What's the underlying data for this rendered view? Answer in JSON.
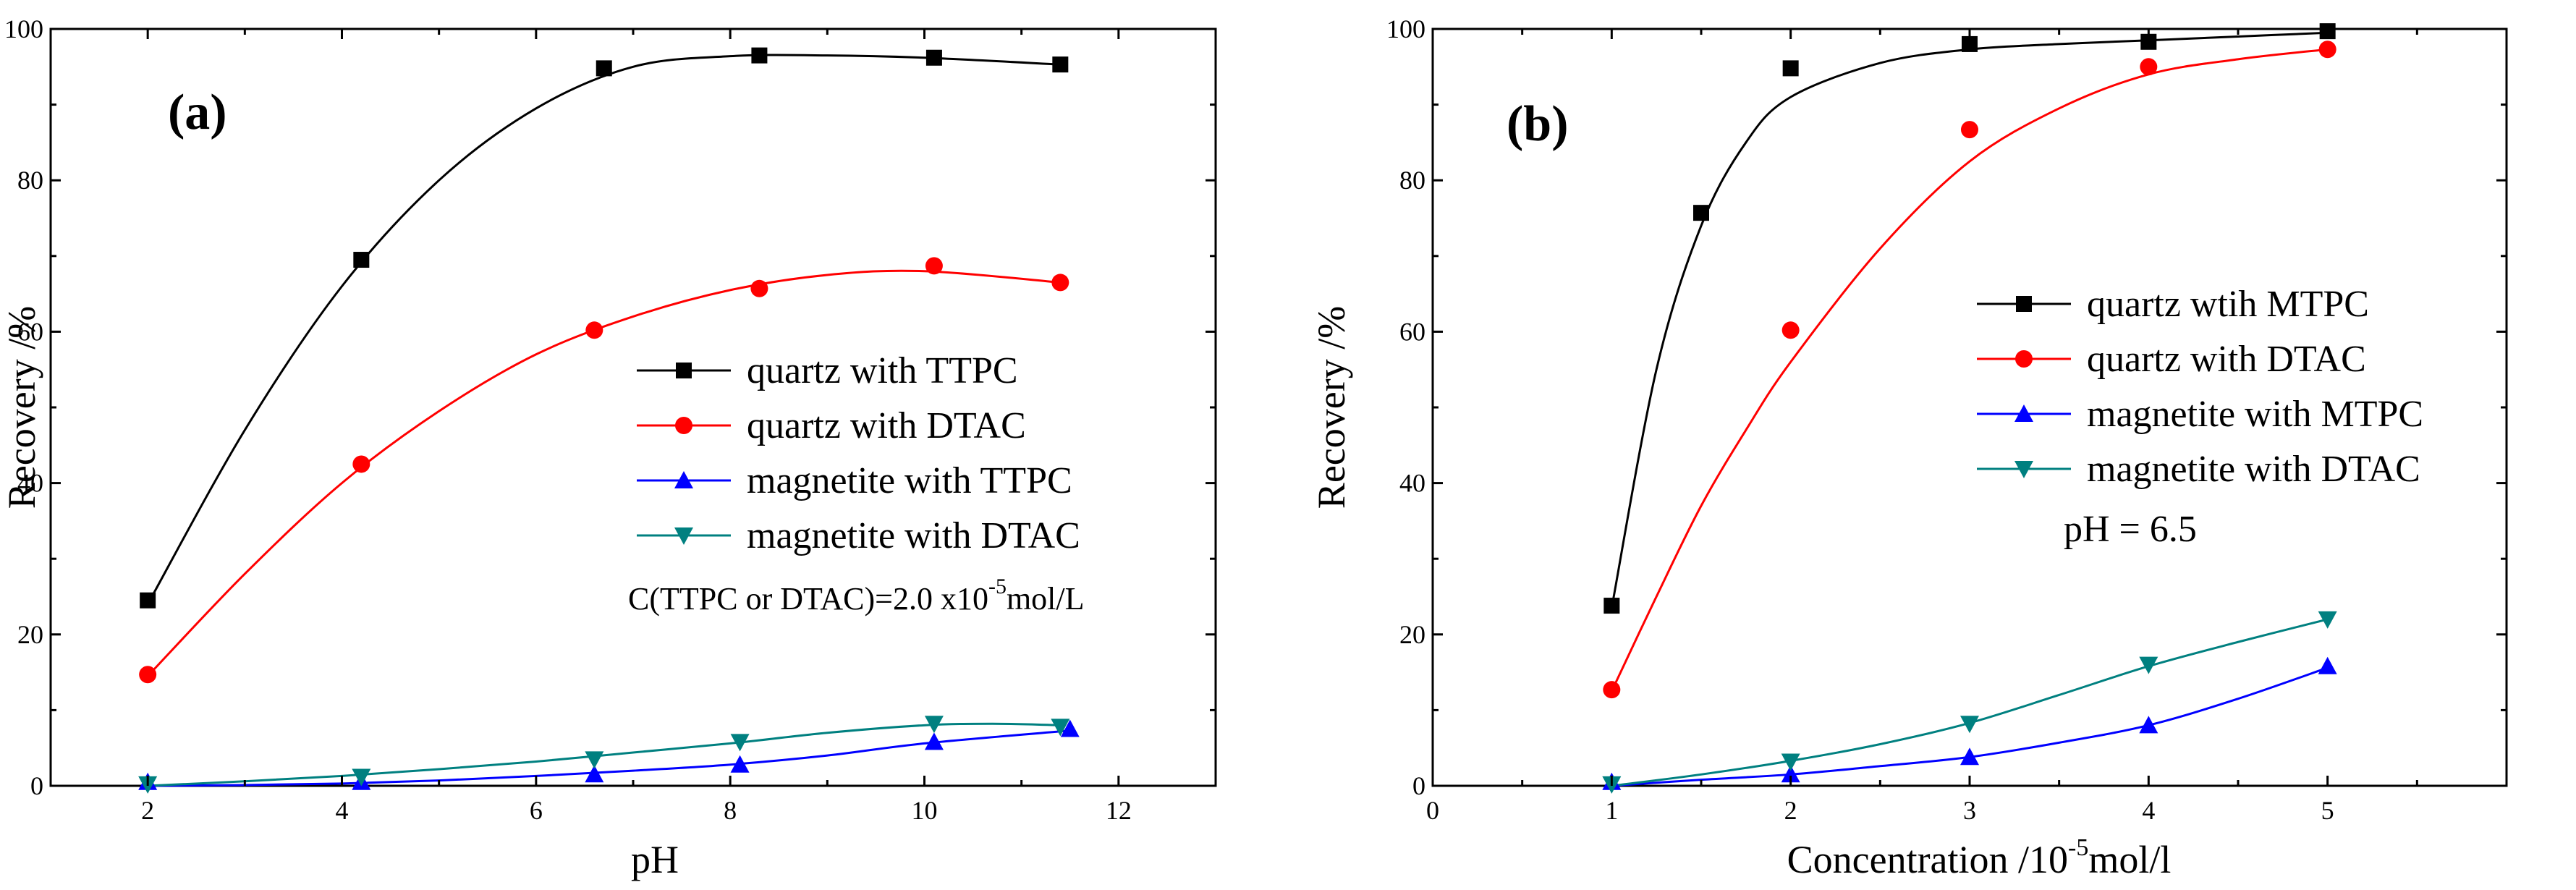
{
  "chart_data": [
    {
      "type": "scatter",
      "panel_label": "(a)",
      "xlabel": "pH",
      "ylabel": "Recovery /%",
      "xlim": [
        1,
        13
      ],
      "ylim": [
        0,
        100
      ],
      "xticks": [
        2,
        4,
        6,
        8,
        10,
        12
      ],
      "yticks": [
        0,
        20,
        40,
        60,
        80,
        100
      ],
      "grid": false,
      "legend_placement": "center-right",
      "note": {
        "prefix": "C(TTPC or DTAC)=2.0 x10",
        "superscript": "-5",
        "suffix": "mol/L"
      },
      "series": [
        {
          "name": "quartz with TTPC",
          "color": "#000000",
          "marker": "square",
          "x": [
            2.0,
            4.2,
            6.7,
            8.3,
            10.1,
            11.4
          ],
          "y": [
            24.5,
            69.5,
            94.8,
            96.5,
            96.2,
            95.3
          ],
          "fit": [
            [
              2.0,
              24.0
            ],
            [
              3.0,
              47.0
            ],
            [
              4.0,
              66.0
            ],
            [
              5.0,
              80.0
            ],
            [
              6.0,
              89.5
            ],
            [
              7.0,
              95.0
            ],
            [
              8.0,
              96.4
            ],
            [
              9.0,
              96.5
            ],
            [
              10.0,
              96.2
            ],
            [
              11.4,
              95.3
            ]
          ]
        },
        {
          "name": "quartz with DTAC",
          "color": "#ff0000",
          "marker": "circle",
          "x": [
            2.0,
            4.2,
            6.6,
            8.3,
            10.1,
            11.4
          ],
          "y": [
            14.7,
            42.5,
            60.2,
            65.7,
            68.7,
            66.5
          ],
          "fit": [
            [
              2.0,
              14.5
            ],
            [
              3.0,
              28.0
            ],
            [
              4.0,
              40.0
            ],
            [
              5.0,
              49.5
            ],
            [
              6.0,
              57.0
            ],
            [
              7.0,
              62.0
            ],
            [
              8.0,
              65.5
            ],
            [
              9.0,
              67.5
            ],
            [
              10.0,
              68.0
            ],
            [
              11.4,
              66.5
            ]
          ]
        },
        {
          "name": "magnetite with TTPC",
          "color": "#0000ff",
          "marker": "triangle-up",
          "x": [
            2.0,
            4.2,
            6.6,
            8.1,
            10.1,
            11.5
          ],
          "y": [
            0.5,
            0.5,
            1.5,
            2.8,
            5.8,
            7.5
          ],
          "fit": [
            [
              2.0,
              0.0
            ],
            [
              3.0,
              0.1
            ],
            [
              4.0,
              0.3
            ],
            [
              5.0,
              0.7
            ],
            [
              6.0,
              1.3
            ],
            [
              7.0,
              2.0
            ],
            [
              8.0,
              2.8
            ],
            [
              9.0,
              4.0
            ],
            [
              10.0,
              5.6
            ],
            [
              11.5,
              7.3
            ]
          ]
        },
        {
          "name": "magnetite with DTAC",
          "color": "#008080",
          "marker": "triangle-down",
          "x": [
            2.0,
            4.2,
            6.6,
            8.1,
            10.1,
            11.4
          ],
          "y": [
            0.2,
            1.2,
            3.5,
            5.8,
            8.2,
            7.8
          ],
          "fit": [
            [
              2.0,
              0.0
            ],
            [
              3.0,
              0.6
            ],
            [
              4.0,
              1.3
            ],
            [
              5.0,
              2.2
            ],
            [
              6.0,
              3.2
            ],
            [
              7.0,
              4.4
            ],
            [
              8.0,
              5.6
            ],
            [
              9.0,
              7.0
            ],
            [
              10.0,
              8.0
            ],
            [
              10.7,
              8.2
            ],
            [
              11.4,
              8.0
            ]
          ]
        }
      ]
    },
    {
      "type": "scatter",
      "panel_label": "(b)",
      "xlabel_prefix": "Concentration /10",
      "xlabel_superscript": "-5",
      "xlabel_suffix": "mol/l",
      "ylabel": "Recovery /%",
      "xlim": [
        0,
        6
      ],
      "ylim": [
        0,
        100
      ],
      "xticks": [
        0,
        1,
        2,
        3,
        4,
        5
      ],
      "yticks": [
        0,
        20,
        40,
        60,
        80,
        100
      ],
      "grid": false,
      "legend_placement": "center-right",
      "note": {
        "text": "pH = 6.5"
      },
      "series": [
        {
          "name": "quartz wtih MTPC",
          "color": "#000000",
          "marker": "square",
          "x": [
            1.0,
            1.5,
            2.0,
            3.0,
            4.0,
            5.0
          ],
          "y": [
            23.8,
            75.7,
            94.8,
            98.0,
            98.3,
            99.7
          ],
          "fit": [
            [
              1.0,
              23.5
            ],
            [
              1.25,
              55.0
            ],
            [
              1.5,
              74.0
            ],
            [
              1.75,
              85.0
            ],
            [
              2.0,
              91.0
            ],
            [
              2.5,
              95.5
            ],
            [
              3.0,
              97.3
            ],
            [
              3.5,
              98.0
            ],
            [
              4.0,
              98.5
            ],
            [
              4.5,
              99.0
            ],
            [
              5.0,
              99.5
            ]
          ]
        },
        {
          "name": "quartz with DTAC",
          "color": "#ff0000",
          "marker": "circle",
          "x": [
            1.0,
            2.0,
            3.0,
            4.0,
            5.0
          ],
          "y": [
            12.7,
            60.2,
            86.7,
            95.0,
            97.3
          ],
          "fit": [
            [
              1.0,
              12.5
            ],
            [
              1.25,
              25.0
            ],
            [
              1.5,
              37.0
            ],
            [
              1.75,
              47.0
            ],
            [
              2.0,
              56.0
            ],
            [
              2.5,
              71.0
            ],
            [
              3.0,
              82.5
            ],
            [
              3.5,
              89.5
            ],
            [
              4.0,
              94.0
            ],
            [
              4.5,
              96.0
            ],
            [
              5.0,
              97.3
            ]
          ]
        },
        {
          "name": "magnetite with MTPC",
          "color": "#0000ff",
          "marker": "triangle-up",
          "x": [
            1.0,
            2.0,
            3.0,
            4.0,
            5.0
          ],
          "y": [
            0.5,
            1.5,
            3.8,
            8.0,
            15.8
          ],
          "fit": [
            [
              1.0,
              0.0
            ],
            [
              1.5,
              0.8
            ],
            [
              2.0,
              1.5
            ],
            [
              2.5,
              2.6
            ],
            [
              3.0,
              3.8
            ],
            [
              3.5,
              5.7
            ],
            [
              4.0,
              8.0
            ],
            [
              4.5,
              11.5
            ],
            [
              5.0,
              15.6
            ]
          ]
        },
        {
          "name": "magnetite with DTAC",
          "color": "#008080",
          "marker": "triangle-down",
          "x": [
            1.0,
            2.0,
            3.0,
            4.0,
            5.0
          ],
          "y": [
            0.2,
            3.2,
            8.2,
            16.0,
            22.0
          ],
          "fit": [
            [
              1.0,
              0.0
            ],
            [
              1.5,
              1.5
            ],
            [
              2.0,
              3.3
            ],
            [
              2.5,
              5.5
            ],
            [
              3.0,
              8.3
            ],
            [
              3.5,
              12.0
            ],
            [
              4.0,
              15.8
            ],
            [
              4.5,
              19.0
            ],
            [
              5.0,
              22.0
            ]
          ]
        }
      ]
    }
  ]
}
